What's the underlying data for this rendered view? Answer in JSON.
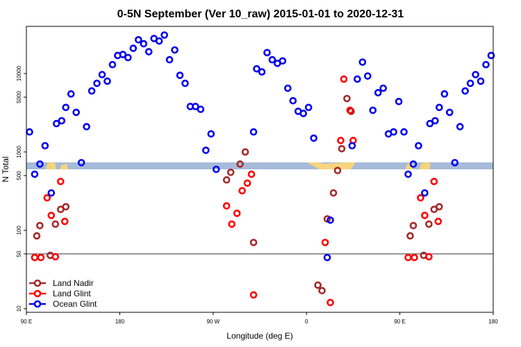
{
  "chart_data": {
    "type": "scatter",
    "title": "0-5N September (Ver 10_raw)   2015-01-01 to 2020-12-31",
    "xlabel": "Longitude (deg E)",
    "ylabel": "N Total",
    "yscale": "log",
    "ylim": [
      9,
      40000
    ],
    "xticks": [
      {
        "label": "90 E",
        "pos": 0
      },
      {
        "label": "180",
        "pos": 90
      },
      {
        "label": "90 W",
        "pos": 180
      },
      {
        "label": "0",
        "pos": 270
      },
      {
        "label": "90 E",
        "pos": 360
      },
      {
        "label": "180",
        "pos": 450
      }
    ],
    "yticks": [
      {
        "value": 10,
        "label": "10"
      },
      {
        "value": 50,
        "label": "50"
      },
      {
        "value": 100,
        "label": "100"
      },
      {
        "value": 500,
        "label": "500"
      },
      {
        "value": 1000,
        "label": "1000"
      },
      {
        "value": 5000,
        "label": "5000"
      },
      {
        "value": 10000,
        "label": "10000"
      }
    ],
    "reference_line": 50,
    "legend_position": "bottom-left",
    "series": [
      {
        "name": "Land Nadir",
        "color": "#a52a2a",
        "points": [
          [
            10,
            85
          ],
          [
            13,
            115
          ],
          [
            23,
            48
          ],
          [
            28,
            120
          ],
          [
            33,
            185
          ],
          [
            38,
            200
          ],
          [
            193,
            440
          ],
          [
            197,
            550
          ],
          [
            206,
            700
          ],
          [
            211,
            1000
          ],
          [
            219,
            70
          ],
          [
            281,
            20
          ],
          [
            285,
            17
          ],
          [
            290,
            140
          ],
          [
            296,
            300
          ],
          [
            300,
            580
          ],
          [
            304,
            1100
          ],
          [
            309,
            4800
          ],
          [
            313,
            3300
          ],
          [
            370,
            85
          ],
          [
            373,
            115
          ],
          [
            383,
            48
          ],
          [
            388,
            120
          ],
          [
            393,
            185
          ],
          [
            398,
            200
          ]
        ]
      },
      {
        "name": "Land Glint",
        "color": "#ff0000",
        "points": [
          [
            8,
            45
          ],
          [
            14,
            45
          ],
          [
            20,
            260
          ],
          [
            24,
            155
          ],
          [
            28,
            46
          ],
          [
            33,
            420
          ],
          [
            37,
            130
          ],
          [
            193,
            205
          ],
          [
            198,
            120
          ],
          [
            203,
            165
          ],
          [
            208,
            320
          ],
          [
            213,
            400
          ],
          [
            217,
            520
          ],
          [
            219,
            15
          ],
          [
            288,
            70
          ],
          [
            293,
            12
          ],
          [
            303,
            1400
          ],
          [
            306,
            8500
          ],
          [
            312,
            3400
          ],
          [
            315,
            1400
          ],
          [
            368,
            45
          ],
          [
            374,
            45
          ],
          [
            380,
            260
          ],
          [
            384,
            155
          ],
          [
            388,
            46
          ],
          [
            393,
            420
          ],
          [
            397,
            130
          ]
        ]
      },
      {
        "name": "Ocean Glint",
        "color": "#0000ee",
        "points": [
          [
            3,
            1800
          ],
          [
            8,
            520
          ],
          [
            13,
            700
          ],
          [
            18,
            1200
          ],
          [
            24,
            300
          ],
          [
            29,
            2300
          ],
          [
            34,
            2500
          ],
          [
            38,
            3700
          ],
          [
            43,
            5500
          ],
          [
            48,
            3200
          ],
          [
            53,
            730
          ],
          [
            58,
            2100
          ],
          [
            63,
            6000
          ],
          [
            68,
            7500
          ],
          [
            73,
            9700
          ],
          [
            78,
            8000
          ],
          [
            83,
            13000
          ],
          [
            88,
            17000
          ],
          [
            93,
            17500
          ],
          [
            98,
            16000
          ],
          [
            103,
            21000
          ],
          [
            108,
            27000
          ],
          [
            113,
            24000
          ],
          [
            118,
            19000
          ],
          [
            123,
            28000
          ],
          [
            128,
            26000
          ],
          [
            133,
            31000
          ],
          [
            138,
            15000
          ],
          [
            143,
            20000
          ],
          [
            148,
            9500
          ],
          [
            153,
            7500
          ],
          [
            158,
            3800
          ],
          [
            163,
            3800
          ],
          [
            168,
            3500
          ],
          [
            173,
            1050
          ],
          [
            178,
            1700
          ],
          [
            183,
            600
          ],
          [
            219,
            1800
          ],
          [
            222,
            11500
          ],
          [
            227,
            10500
          ],
          [
            232,
            18500
          ],
          [
            237,
            15000
          ],
          [
            242,
            13500
          ],
          [
            247,
            14500
          ],
          [
            252,
            6500
          ],
          [
            257,
            4500
          ],
          [
            262,
            3300
          ],
          [
            267,
            3100
          ],
          [
            272,
            3700
          ],
          [
            277,
            1500
          ],
          [
            290,
            45
          ],
          [
            293,
            135
          ],
          [
            314,
            1200
          ],
          [
            319,
            8500
          ],
          [
            324,
            14000
          ],
          [
            329,
            9300
          ],
          [
            334,
            3400
          ],
          [
            339,
            5700
          ],
          [
            344,
            6500
          ],
          [
            349,
            1700
          ],
          [
            354,
            1800
          ],
          [
            359,
            4400
          ],
          [
            364,
            1800
          ],
          [
            368,
            520
          ],
          [
            373,
            700
          ],
          [
            378,
            1200
          ],
          [
            384,
            300
          ],
          [
            389,
            2300
          ],
          [
            394,
            2500
          ],
          [
            398,
            3700
          ],
          [
            403,
            5500
          ],
          [
            408,
            3200
          ],
          [
            413,
            730
          ],
          [
            418,
            2100
          ],
          [
            423,
            6000
          ],
          [
            428,
            7500
          ],
          [
            433,
            9700
          ],
          [
            438,
            8000
          ],
          [
            443,
            13000
          ],
          [
            448,
            17000
          ]
        ]
      }
    ]
  }
}
